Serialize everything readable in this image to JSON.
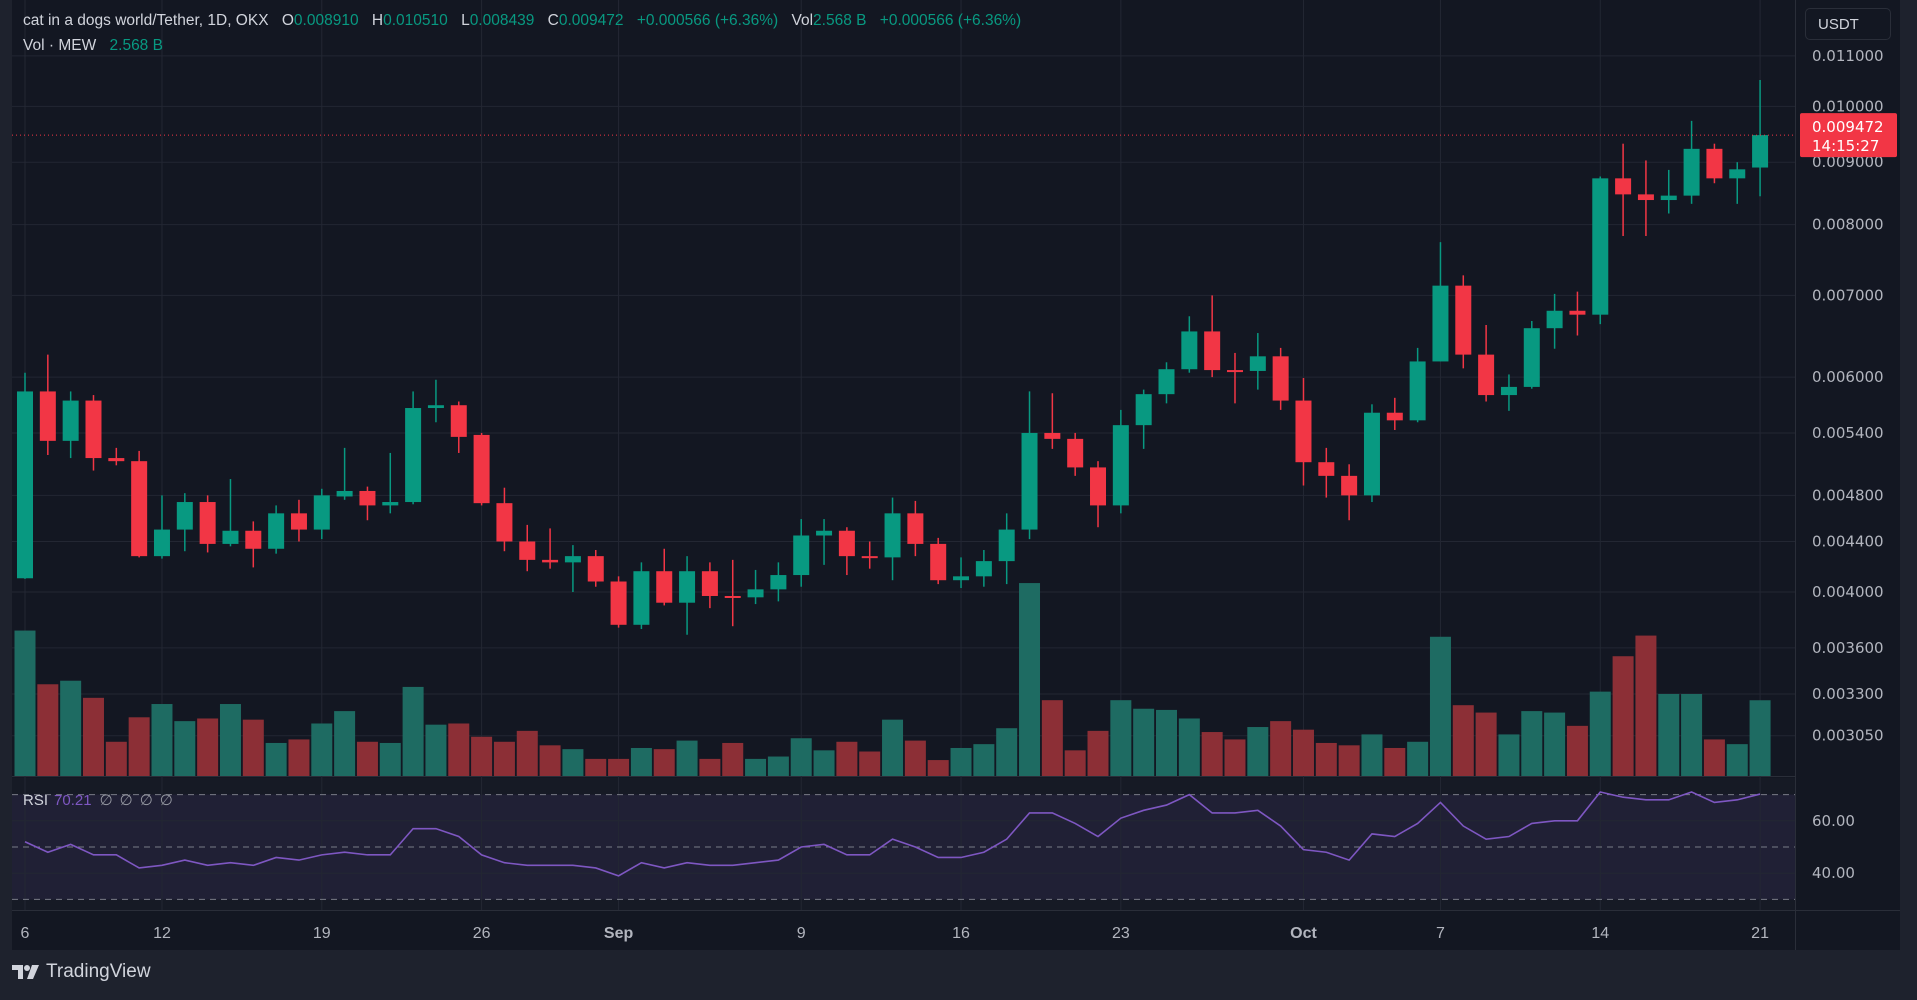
{
  "legend": {
    "symbol": "cat in a dogs world/Tether, 1D, OKX",
    "open_label": "O",
    "open": "0.008910",
    "high_label": "H",
    "high": "0.010510",
    "low_label": "L",
    "low": "0.008439",
    "close_label": "C",
    "close": "0.009472",
    "change": "+0.000566 (+6.36%)",
    "vol_label": "Vol",
    "vol": "2.568 B",
    "vol_change": "+0.000566 (+6.36%)",
    "vol_series_label": "Vol · MEW",
    "vol_series_value": "2.568 B"
  },
  "currency": "USDT",
  "last_price": {
    "price": "0.009472",
    "countdown": "14:15:27"
  },
  "rsi": {
    "label": "RSI",
    "value": "70.21",
    "nulls": "∅∅∅∅"
  },
  "brand": "TradingView",
  "colors": {
    "up": "#089981",
    "down": "#f23645",
    "vol_up": "#1e6b62",
    "vol_down": "#8c2f36",
    "rsi": "#7e57c2",
    "grid": "#232733"
  },
  "chart_data": [
    {
      "type": "candlestick",
      "scale": "log",
      "price_ticks": [
        "0.011000",
        "0.010000",
        "0.009000",
        "0.008000",
        "0.007000",
        "0.006000",
        "0.005400",
        "0.004800",
        "0.004400",
        "0.004000",
        "0.003600",
        "0.003300",
        "0.003050"
      ],
      "x_ticks": [
        {
          "day": 0,
          "label": "6"
        },
        {
          "day": 6,
          "label": "12"
        },
        {
          "day": 13,
          "label": "19"
        },
        {
          "day": 20,
          "label": "26"
        },
        {
          "day": 26,
          "label": "Sep",
          "bold": true
        },
        {
          "day": 34,
          "label": "9"
        },
        {
          "day": 41,
          "label": "16"
        },
        {
          "day": 48,
          "label": "23"
        },
        {
          "day": 56,
          "label": "Oct",
          "bold": true
        },
        {
          "day": 62,
          "label": "7"
        },
        {
          "day": 69,
          "label": "14"
        },
        {
          "day": 76,
          "label": "21"
        }
      ],
      "ohlc": [
        [
          0.004105,
          0.00605,
          0.0041,
          0.00584
        ],
        [
          0.00584,
          0.00626,
          0.00518,
          0.00532
        ],
        [
          0.00532,
          0.00584,
          0.00515,
          0.00574
        ],
        [
          0.00574,
          0.0058,
          0.00503,
          0.00515
        ],
        [
          0.00515,
          0.00525,
          0.00508,
          0.00512
        ],
        [
          0.00512,
          0.00522,
          0.00427,
          0.00428
        ],
        [
          0.00428,
          0.0048,
          0.00426,
          0.0045
        ],
        [
          0.0045,
          0.00482,
          0.00432,
          0.00474
        ],
        [
          0.00474,
          0.0048,
          0.00431,
          0.00438
        ],
        [
          0.00438,
          0.00495,
          0.00436,
          0.00449
        ],
        [
          0.00449,
          0.00457,
          0.00419,
          0.00434
        ],
        [
          0.00434,
          0.00471,
          0.0043,
          0.00464
        ],
        [
          0.00464,
          0.00476,
          0.0044,
          0.0045
        ],
        [
          0.0045,
          0.00486,
          0.00442,
          0.0048
        ],
        [
          0.00479,
          0.00525,
          0.00476,
          0.00484
        ],
        [
          0.00484,
          0.00488,
          0.00458,
          0.00471
        ],
        [
          0.00471,
          0.0052,
          0.00464,
          0.00474
        ],
        [
          0.00474,
          0.00584,
          0.00472,
          0.00566
        ],
        [
          0.00566,
          0.00597,
          0.00551,
          0.00569
        ],
        [
          0.00569,
          0.00573,
          0.0052,
          0.00536
        ],
        [
          0.00538,
          0.0054,
          0.00471,
          0.00473
        ],
        [
          0.00473,
          0.00487,
          0.00432,
          0.0044
        ],
        [
          0.0044,
          0.00454,
          0.00416,
          0.00425
        ],
        [
          0.00425,
          0.00451,
          0.00418,
          0.00423
        ],
        [
          0.00423,
          0.00437,
          0.004,
          0.00428
        ],
        [
          0.00428,
          0.00433,
          0.00404,
          0.00408
        ],
        [
          0.00408,
          0.00412,
          0.00374,
          0.00376
        ],
        [
          0.00376,
          0.00423,
          0.00373,
          0.00416
        ],
        [
          0.00416,
          0.00434,
          0.0039,
          0.00392
        ],
        [
          0.00392,
          0.00428,
          0.00369,
          0.00416
        ],
        [
          0.00416,
          0.00423,
          0.00388,
          0.00397
        ],
        [
          0.00397,
          0.00425,
          0.00375,
          0.00396
        ],
        [
          0.00396,
          0.00417,
          0.00391,
          0.00402
        ],
        [
          0.00402,
          0.00423,
          0.00393,
          0.00413
        ],
        [
          0.00413,
          0.00459,
          0.00404,
          0.00445
        ],
        [
          0.00445,
          0.00459,
          0.00421,
          0.00449
        ],
        [
          0.00449,
          0.00452,
          0.00413,
          0.00428
        ],
        [
          0.00428,
          0.0044,
          0.00418,
          0.00427
        ],
        [
          0.00427,
          0.00478,
          0.00409,
          0.00464
        ],
        [
          0.00464,
          0.00475,
          0.00428,
          0.00438
        ],
        [
          0.00438,
          0.00443,
          0.00406,
          0.00409
        ],
        [
          0.00409,
          0.00427,
          0.00403,
          0.00412
        ],
        [
          0.00412,
          0.00433,
          0.00404,
          0.00424
        ],
        [
          0.00424,
          0.00464,
          0.00406,
          0.0045
        ],
        [
          0.0045,
          0.00584,
          0.00442,
          0.0054
        ],
        [
          0.0054,
          0.00582,
          0.00524,
          0.00534
        ],
        [
          0.00534,
          0.0054,
          0.00498,
          0.00506
        ],
        [
          0.00506,
          0.00512,
          0.00452,
          0.00471
        ],
        [
          0.00471,
          0.00564,
          0.00464,
          0.00548
        ],
        [
          0.00548,
          0.00586,
          0.00524,
          0.00581
        ],
        [
          0.00581,
          0.00617,
          0.00571,
          0.00609
        ],
        [
          0.00609,
          0.00673,
          0.00605,
          0.00654
        ],
        [
          0.00654,
          0.007,
          0.006,
          0.00608
        ],
        [
          0.00608,
          0.00628,
          0.00571,
          0.00607
        ],
        [
          0.00607,
          0.00652,
          0.00586,
          0.00624
        ],
        [
          0.00624,
          0.00634,
          0.00564,
          0.00574
        ],
        [
          0.00574,
          0.00599,
          0.00489,
          0.00511
        ],
        [
          0.00511,
          0.00525,
          0.00478,
          0.00498
        ],
        [
          0.00498,
          0.00509,
          0.00458,
          0.0048
        ],
        [
          0.0048,
          0.0057,
          0.00474,
          0.00561
        ],
        [
          0.00561,
          0.00577,
          0.00543,
          0.00553
        ],
        [
          0.00553,
          0.00634,
          0.00551,
          0.00618
        ],
        [
          0.00618,
          0.00774,
          0.00618,
          0.00713
        ],
        [
          0.00713,
          0.00727,
          0.0061,
          0.00626
        ],
        [
          0.00626,
          0.00662,
          0.00573,
          0.0058
        ],
        [
          0.0058,
          0.00603,
          0.00563,
          0.00589
        ],
        [
          0.00589,
          0.00667,
          0.00587,
          0.00658
        ],
        [
          0.00658,
          0.00702,
          0.00633,
          0.0068
        ],
        [
          0.0068,
          0.00705,
          0.00649,
          0.00675
        ],
        [
          0.00675,
          0.00876,
          0.00663,
          0.00873
        ],
        [
          0.00873,
          0.00932,
          0.00783,
          0.00847
        ],
        [
          0.00847,
          0.00903,
          0.00783,
          0.00838
        ],
        [
          0.00838,
          0.00887,
          0.00817,
          0.00845
        ],
        [
          0.00845,
          0.00973,
          0.00832,
          0.00923
        ],
        [
          0.00923,
          0.00932,
          0.00865,
          0.00873
        ],
        [
          0.00873,
          0.009,
          0.00832,
          0.00888
        ],
        [
          0.00891,
          0.01051,
          0.00844,
          0.009472
        ]
      ],
      "volume_billions": [
        4.93,
        3.11,
        3.23,
        2.65,
        1.16,
        1.99,
        2.44,
        1.86,
        1.95,
        2.44,
        1.91,
        1.12,
        1.24,
        1.78,
        2.2,
        1.16,
        1.12,
        3.02,
        1.74,
        1.78,
        1.33,
        1.16,
        1.53,
        1.04,
        0.91,
        0.58,
        0.58,
        0.95,
        0.91,
        1.2,
        0.58,
        1.12,
        0.58,
        0.66,
        1.28,
        0.87,
        1.16,
        0.83,
        1.91,
        1.2,
        0.54,
        0.95,
        1.08,
        1.62,
        6.54,
        2.57,
        0.87,
        1.53,
        2.57,
        2.28,
        2.24,
        1.95,
        1.49,
        1.24,
        1.66,
        1.86,
        1.57,
        1.12,
        1.04,
        1.41,
        0.95,
        1.16,
        4.72,
        2.4,
        2.15,
        1.41,
        2.2,
        2.15,
        1.7,
        2.86,
        4.06,
        4.76,
        2.78,
        2.78,
        1.24,
        1.08,
        2.568
      ]
    },
    {
      "type": "line",
      "name": "RSI",
      "levels": [
        70,
        50,
        30
      ],
      "y_ticks": [
        "60.00",
        "40.00"
      ],
      "values": [
        52,
        48,
        51,
        47,
        47,
        42,
        43,
        45,
        43,
        44,
        43,
        46,
        45,
        47,
        48,
        47,
        47,
        57,
        57,
        54,
        47,
        44,
        43,
        43,
        43,
        42,
        39,
        44,
        42,
        44,
        43,
        43,
        44,
        45,
        50,
        51,
        47,
        47,
        53,
        50,
        46,
        46,
        48,
        53,
        63,
        63,
        59,
        54,
        61,
        64,
        66,
        70,
        63,
        63,
        64,
        58,
        49,
        48,
        45,
        55,
        54,
        59,
        67,
        58,
        53,
        54,
        59,
        60,
        60,
        71,
        69,
        68,
        68,
        71,
        67,
        68,
        70.21
      ]
    }
  ]
}
